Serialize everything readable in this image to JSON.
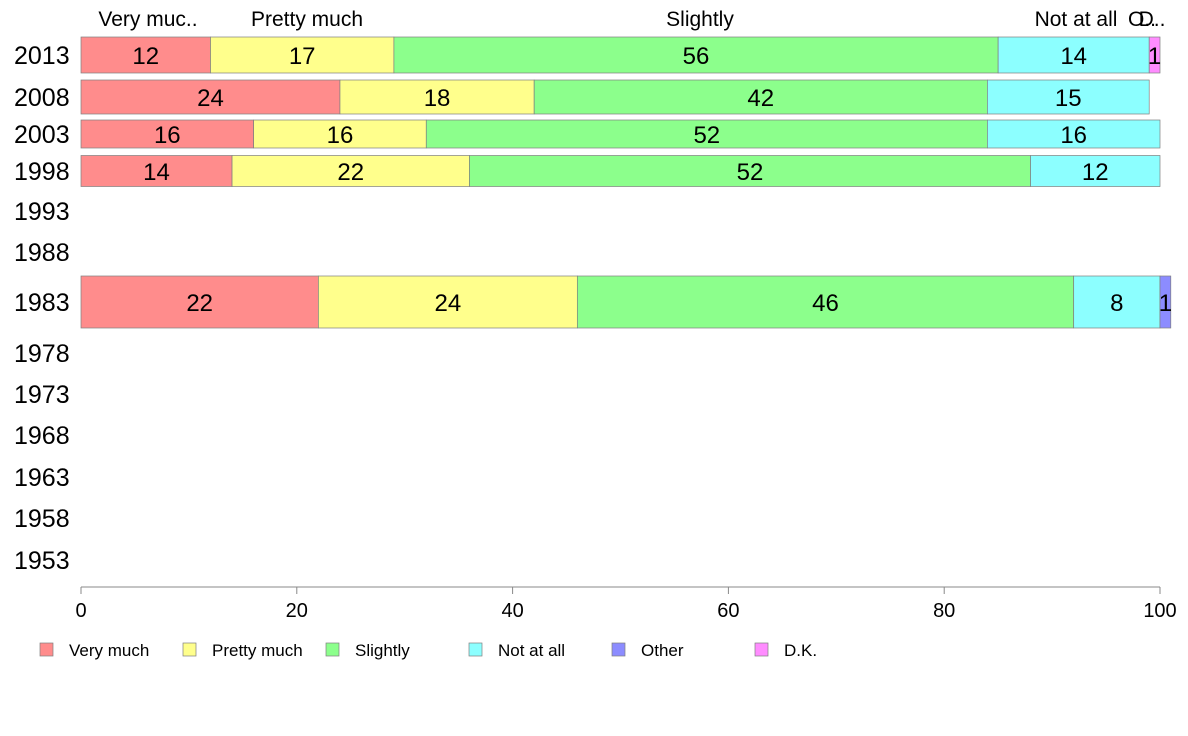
{
  "chart_data": {
    "type": "bar",
    "orientation": "horizontal-stacked",
    "title": "",
    "xlabel": "",
    "ylabel": "",
    "xlim": [
      0,
      100
    ],
    "x_ticks": [
      0,
      20,
      40,
      60,
      80,
      100
    ],
    "categories": [
      "2013",
      "2008",
      "2003",
      "1998",
      "1993",
      "1988",
      "1983",
      "1978",
      "1973",
      "1968",
      "1963",
      "1958",
      "1953"
    ],
    "series": [
      {
        "name": "Very much",
        "color": "#ff8c8c",
        "values": [
          12,
          24,
          16,
          14,
          null,
          null,
          22,
          null,
          null,
          null,
          null,
          null,
          null
        ]
      },
      {
        "name": "Pretty much",
        "color": "#ffff8c",
        "values": [
          17,
          18,
          16,
          22,
          null,
          null,
          24,
          null,
          null,
          null,
          null,
          null,
          null
        ]
      },
      {
        "name": "Slightly",
        "color": "#8cff8c",
        "values": [
          56,
          42,
          52,
          52,
          null,
          null,
          46,
          null,
          null,
          null,
          null,
          null,
          null
        ]
      },
      {
        "name": "Not at all",
        "color": "#8cffff",
        "values": [
          14,
          15,
          16,
          12,
          null,
          null,
          8,
          null,
          null,
          null,
          null,
          null,
          null
        ]
      },
      {
        "name": "Other",
        "color": "#8c8cff",
        "values": [
          0,
          0,
          0,
          0,
          null,
          null,
          1,
          null,
          null,
          null,
          null,
          null,
          null
        ]
      },
      {
        "name": "D.K.",
        "color": "#ff8cff",
        "values": [
          1,
          0,
          0,
          0,
          null,
          null,
          0,
          null,
          null,
          null,
          null,
          null,
          null
        ]
      }
    ],
    "top_labels": [
      "Very muc..",
      "Pretty much",
      "Slightly",
      "Not at all",
      "O..",
      "D.."
    ],
    "segment_labels": [
      [
        "12",
        "17",
        "56",
        "14",
        "",
        "1"
      ],
      [
        "24",
        "18",
        "42",
        "15",
        "",
        ""
      ],
      [
        "16",
        "16",
        "52",
        "16",
        "",
        ""
      ],
      [
        "14",
        "22",
        "52",
        "12",
        "",
        ""
      ],
      [],
      [],
      [
        "22",
        "24",
        "46",
        "8",
        "1",
        ""
      ]
    ],
    "legend": {
      "position": "bottom-left",
      "items": [
        "Very much",
        "Pretty much",
        "Slightly",
        "Not at all",
        "Other",
        "D.K."
      ]
    },
    "grid": false
  }
}
